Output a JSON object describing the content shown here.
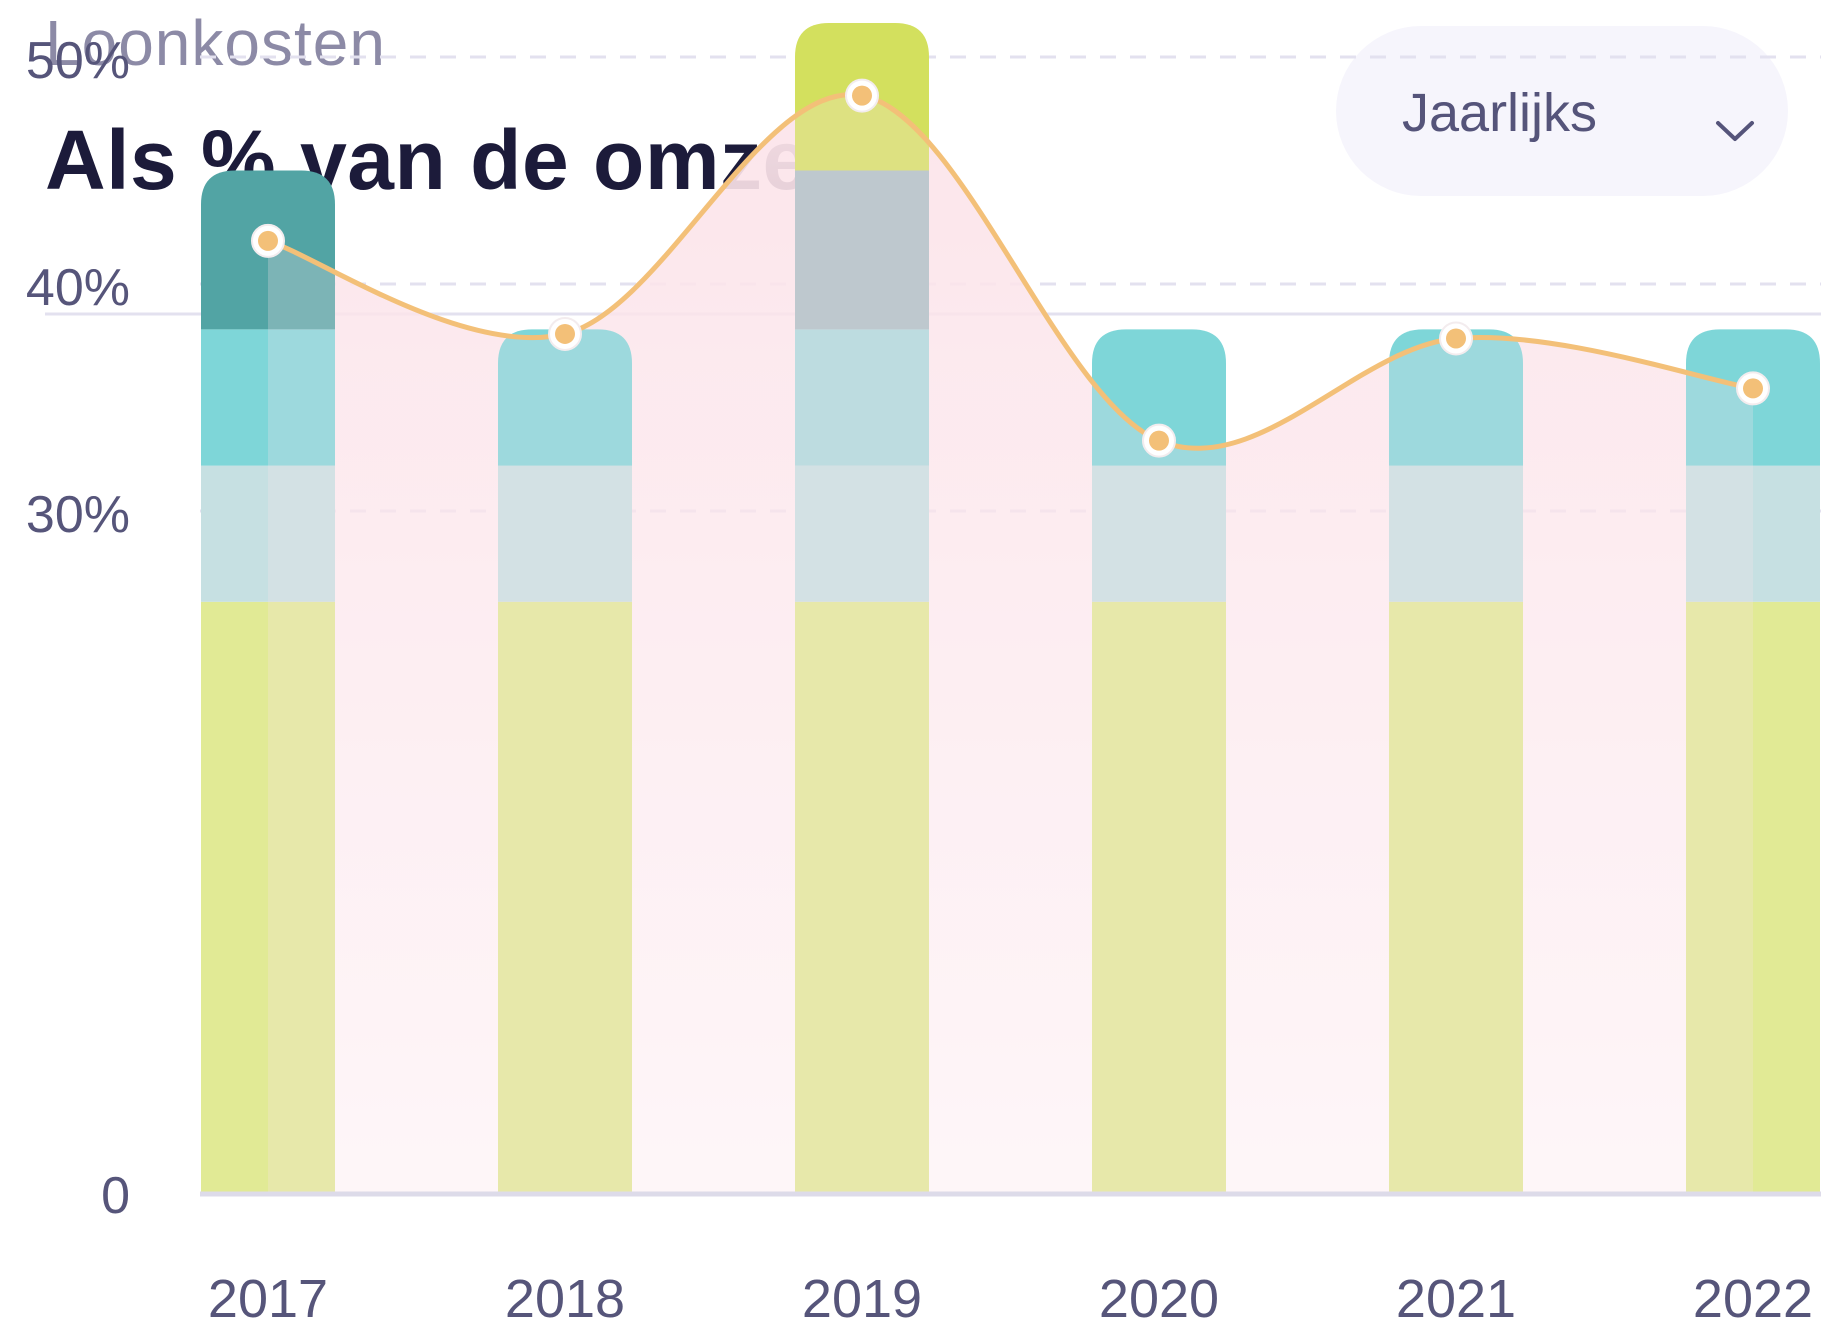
{
  "header": {
    "subtitle": "Loonkosten",
    "title": "Als % van de omzet"
  },
  "period_select": {
    "selected": "Jaarlijks",
    "icon": "chevron-down-icon"
  },
  "colors": {
    "lime": "#d3e05e",
    "lime_light": "#e1ea95",
    "teal_dark": "#52a4a4",
    "teal": "#7ed6d8",
    "teal_mid": "#a8dadd",
    "teal_pale": "#c6e0e2",
    "line": "#f3c078",
    "area": "#fde5ea",
    "grid": "#e3e1ef",
    "axis_text": "#56557a"
  },
  "chart_data": {
    "type": "bar",
    "categories": [
      "2017",
      "2018",
      "2019",
      "2020",
      "2021",
      "2022"
    ],
    "y_ticks": [
      "0",
      "30%",
      "40%",
      "50%"
    ],
    "segments": [
      [
        {
          "from": 0,
          "to": 26,
          "color": "#e1ea95"
        },
        {
          "from": 26,
          "to": 32,
          "color": "#c6e0e2"
        },
        {
          "from": 32,
          "to": 38,
          "color": "#7ed6d8"
        },
        {
          "from": 38,
          "to": 45,
          "color": "#52a4a4"
        }
      ],
      [
        {
          "from": 0,
          "to": 26,
          "color": "#e1ea95"
        },
        {
          "from": 26,
          "to": 32,
          "color": "#c6e0e2"
        },
        {
          "from": 32,
          "to": 38,
          "color": "#7ed6d8"
        }
      ],
      [
        {
          "from": 0,
          "to": 26,
          "color": "#e1ea95"
        },
        {
          "from": 26,
          "to": 32,
          "color": "#c6e0e2"
        },
        {
          "from": 32,
          "to": 38,
          "color": "#a8dadd"
        },
        {
          "from": 38,
          "to": 45,
          "color": "#aabfc4"
        },
        {
          "from": 45,
          "to": 51.5,
          "color": "#d3e05e"
        }
      ],
      [
        {
          "from": 0,
          "to": 26,
          "color": "#e1ea95"
        },
        {
          "from": 26,
          "to": 32,
          "color": "#c6e0e2"
        },
        {
          "from": 32,
          "to": 38,
          "color": "#7ed6d8"
        }
      ],
      [
        {
          "from": 0,
          "to": 26,
          "color": "#e1ea95"
        },
        {
          "from": 26,
          "to": 32,
          "color": "#c6e0e2"
        },
        {
          "from": 32,
          "to": 38,
          "color": "#7ed6d8"
        }
      ],
      [
        {
          "from": 0,
          "to": 26,
          "color": "#e1ea95"
        },
        {
          "from": 26,
          "to": 32,
          "color": "#c6e0e2"
        },
        {
          "from": 32,
          "to": 38,
          "color": "#7ed6d8"
        }
      ]
    ],
    "line": {
      "values": [
        41.9,
        37.8,
        48.3,
        33.1,
        37.6,
        35.4
      ],
      "color": "#f3c078"
    }
  }
}
